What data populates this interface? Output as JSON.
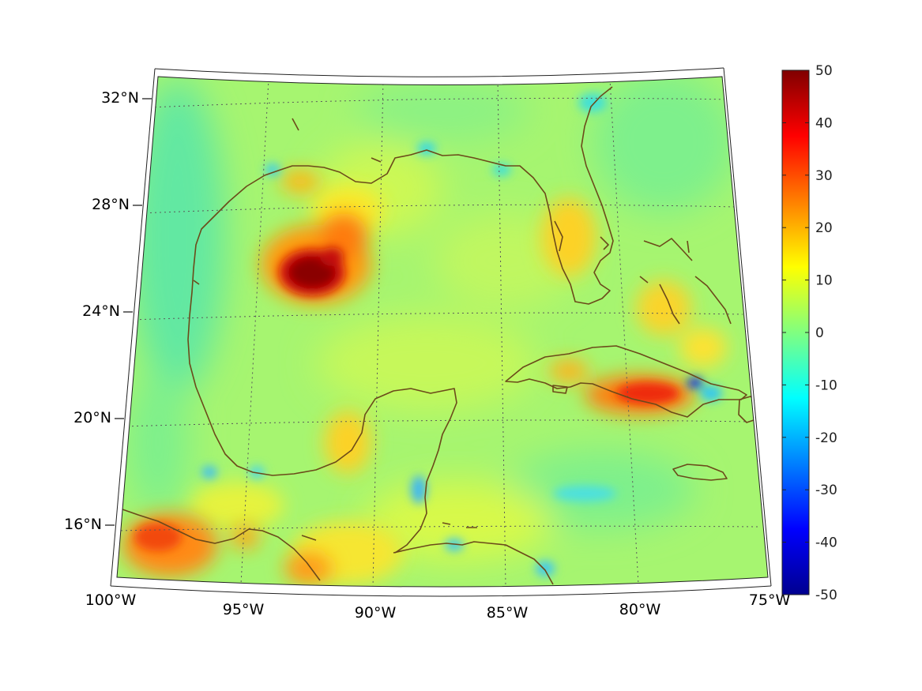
{
  "map": {
    "projection": "conic",
    "lat_labels": [
      "32°N",
      "28°N",
      "24°N",
      "20°N",
      "16°N"
    ],
    "lon_labels": [
      "100°W",
      "95°W",
      "90°W",
      "85°W",
      "80°W",
      "75°W"
    ],
    "grid": true,
    "coastline_color": "#6b4a1a",
    "background_value_color": "#a6f570"
  },
  "colorbar": {
    "colormap": "jet",
    "range": [
      -50,
      50
    ],
    "tick_labels": [
      "50",
      "40",
      "30",
      "20",
      "10",
      "0",
      "-10",
      "-20",
      "-30",
      "-40",
      "-50"
    ]
  },
  "anomalies": [
    {
      "region": "western Gulf of Mexico",
      "value": 50
    },
    {
      "region": "southeastern Cuba",
      "value": 30
    },
    {
      "region": "southern Mexico coast",
      "value": 25
    },
    {
      "region": "eastern Cuba",
      "value": -25
    }
  ]
}
